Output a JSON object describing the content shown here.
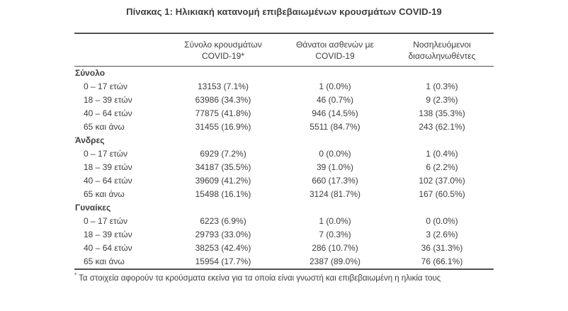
{
  "title": "Πίνακας 1: Ηλικιακή κατανομή επιβεβαιωμένων κρουσμάτων COVID-19",
  "colors": {
    "text": "#3d3d3d",
    "line": "#515151",
    "background": "#ffffff"
  },
  "table": {
    "columns": [
      {
        "line1": "Σύνολο κρουσμάτων",
        "line2": "COVID-19*"
      },
      {
        "line1": "Θάνατοι ασθενών με",
        "line2": "COVID-19"
      },
      {
        "line1": "Νοσηλευόμενοι",
        "line2": "διασωληνωθέντες"
      }
    ],
    "sections": [
      {
        "label": "Σύνολο",
        "rows": [
          {
            "label": "0 – 17 ετών",
            "values": [
              "13153 (7.1%)",
              "1 (0.0%)",
              "1 (0.3%)"
            ]
          },
          {
            "label": "18 – 39 ετών",
            "values": [
              "63986 (34.3%)",
              "46 (0.7%)",
              "9 (2.3%)"
            ]
          },
          {
            "label": "40 – 64 ετών",
            "values": [
              "77875 (41.8%)",
              "946 (14.5%)",
              "138 (35.3%)"
            ]
          },
          {
            "label": "65 και άνω",
            "values": [
              "31455 (16.9%)",
              "5511 (84.7%)",
              "243 (62.1%)"
            ]
          }
        ]
      },
      {
        "label": "Άνδρες",
        "rows": [
          {
            "label": "0 – 17 ετών",
            "values": [
              "6929 (7.2%)",
              "0 (0.0%)",
              "1 (0.4%)"
            ]
          },
          {
            "label": "18 – 39 ετών",
            "values": [
              "34187 (35.5%)",
              "39 (1.0%)",
              "6 (2.2%)"
            ]
          },
          {
            "label": "40 – 64 ετών",
            "values": [
              "39609 (41.2%)",
              "660 (17.3%)",
              "102 (37.0%)"
            ]
          },
          {
            "label": "65 και άνω",
            "values": [
              "15498 (16.1%)",
              "3124 (81.7%)",
              "167 (60.5%)"
            ]
          }
        ]
      },
      {
        "label": "Γυναίκες",
        "rows": [
          {
            "label": "0 – 17 ετών",
            "values": [
              "6223 (6.9%)",
              "1 (0.0%)",
              "0 (0.0%)"
            ]
          },
          {
            "label": "18 – 39 ετών",
            "values": [
              "29793 (33.0%)",
              "7 (0.3%)",
              "3 (2.6%)"
            ]
          },
          {
            "label": "40 – 64 ετών",
            "values": [
              "38253 (42.4%)",
              "286 (10.7%)",
              "36 (31.3%)"
            ]
          },
          {
            "label": "65 και άνω",
            "values": [
              "15954 (17.7%)",
              "2387 (89.0%)",
              "76 (66.1%)"
            ]
          }
        ]
      }
    ]
  },
  "footnote": {
    "marker": "*",
    "text": "Τα στοιχεία αφορούν τα κρούσματα εκείνα για τα οποία είναι γνωστή και επιβεβαιωμένη η ηλικία τους"
  }
}
